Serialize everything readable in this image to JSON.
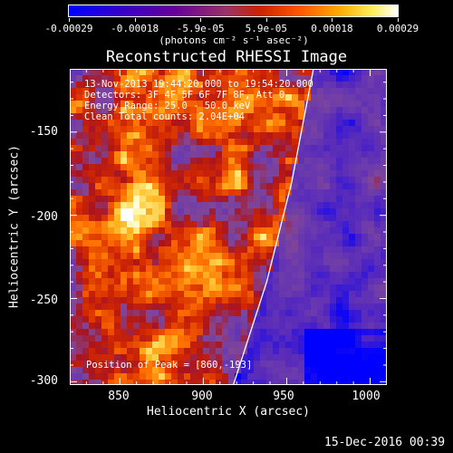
{
  "colorbar": {
    "tick_labels": [
      "-0.00029",
      "-0.00018",
      "-5.9e-05",
      "5.9e-05",
      "0.00018",
      "0.00029"
    ],
    "units_label": "(photons cm⁻² s⁻¹ asec⁻²)"
  },
  "chart_data": {
    "type": "heatmap",
    "title": "Reconstructed RHESSI Image",
    "xlabel": "Heliocentric X (arcsec)",
    "ylabel": "Heliocentric Y (arcsec)",
    "x_ticks": [
      "850",
      "900",
      "950",
      "1000"
    ],
    "y_ticks": [
      "-150",
      "-200",
      "-250",
      "-300"
    ],
    "xlim": [
      820,
      1010
    ],
    "ylim": [
      -302,
      -112
    ],
    "annotations": [
      "13-Nov-2013 19:44:20.000 to 19:54:20.000",
      "Detectors: 3F 4F 5F 6F 7F 8F, Att 0",
      "Energy Range: 25.0 - 50.0 keV",
      "Clean    Total counts: 2.04E+04"
    ],
    "peak_label": "Position of Peak = [860,-193]",
    "peak": [
      860,
      -193
    ],
    "limb_line": {
      "x": [
        918,
        938,
        953,
        966
      ],
      "y": [
        -302,
        -240,
        -180,
        -112
      ],
      "color": "#ffffff"
    },
    "colorscale": [
      "#0000ff",
      "#6633aa",
      "#8844aa",
      "#cc2200",
      "#ff6600",
      "#ffcc00",
      "#ffffff"
    ]
  },
  "footer": {
    "date": "15-Dec-2016 00:39"
  }
}
